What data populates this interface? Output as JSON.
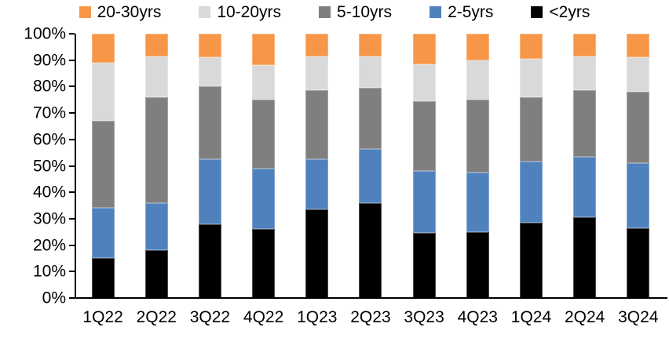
{
  "chart_data": {
    "type": "bar",
    "stacked": true,
    "percent_stacked": true,
    "title": "",
    "xlabel": "",
    "ylabel": "",
    "grid": false,
    "categories": [
      "1Q22",
      "2Q22",
      "3Q22",
      "4Q22",
      "1Q23",
      "2Q23",
      "3Q23",
      "4Q23",
      "1Q24",
      "2Q24",
      "3Q24"
    ],
    "series": [
      {
        "name": "<2yrs",
        "color": "#000000",
        "values": [
          15.0,
          18.0,
          28.0,
          26.0,
          33.5,
          36.0,
          24.5,
          25.0,
          28.5,
          30.5,
          26.5
        ]
      },
      {
        "name": "2-5yrs",
        "color": "#4F81BD",
        "values": [
          19.0,
          18.0,
          24.5,
          23.0,
          19.0,
          20.5,
          23.5,
          22.5,
          23.0,
          23.0,
          24.5
        ]
      },
      {
        "name": "5-10yrs",
        "color": "#7F7F7F",
        "values": [
          33.0,
          40.0,
          27.5,
          26.0,
          26.0,
          23.0,
          26.5,
          27.5,
          24.5,
          25.0,
          27.0
        ]
      },
      {
        "name": "10-20yrs",
        "color": "#D9D9D9",
        "values": [
          22.0,
          15.5,
          11.0,
          13.0,
          13.0,
          12.0,
          14.0,
          15.0,
          14.5,
          13.0,
          13.0
        ]
      },
      {
        "name": "20-30yrs",
        "color": "#F79646",
        "values": [
          11.0,
          8.5,
          9.0,
          12.0,
          8.5,
          8.5,
          11.5,
          10.0,
          9.5,
          8.5,
          9.0
        ]
      }
    ],
    "legend": {
      "position": "top",
      "order": [
        "20-30yrs",
        "10-20yrs",
        "5-10yrs",
        "2-5yrs",
        "<2yrs"
      ]
    },
    "y_axis": {
      "min": 0,
      "max": 100,
      "step": 10,
      "labels": [
        "0%",
        "10%",
        "20%",
        "30%",
        "40%",
        "50%",
        "60%",
        "70%",
        "80%",
        "90%",
        "100%"
      ]
    }
  }
}
